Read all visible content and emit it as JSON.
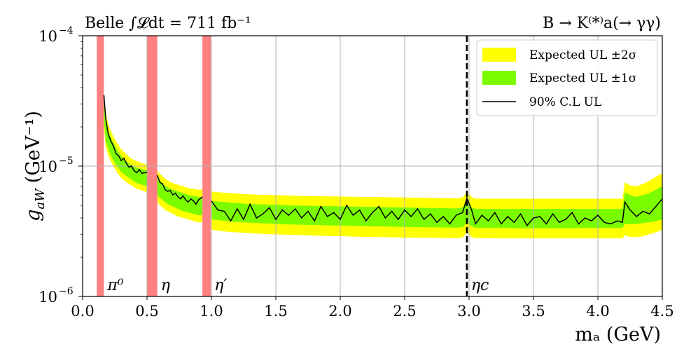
{
  "chart_data": {
    "type": "line",
    "header_left": "Belle ∫𝓛dt = 711 fb⁻¹",
    "header_right": "B → K⁽*⁾a(→ γγ)",
    "xlabel": "mₐ (GeV)",
    "ylabel": "g_aW (GeV⁻¹)",
    "ylabel_sym": "g",
    "ylabel_sub": "aW",
    "ylabel_unit": "(GeV⁻¹)",
    "xlim": [
      0.0,
      4.5
    ],
    "ylim": [
      1e-06,
      0.0001
    ],
    "yscale": "log",
    "grid": true,
    "legend_position": "top-right",
    "x_ticks": [
      "0.0",
      "0.5",
      "1.0",
      "1.5",
      "2.0",
      "2.5",
      "3.0",
      "3.5",
      "4.0",
      "4.5"
    ],
    "y_ticks": [
      {
        "base": "10",
        "exp": "−6"
      },
      {
        "base": "10",
        "exp": "−5"
      },
      {
        "base": "10",
        "exp": "−4"
      }
    ],
    "legend": [
      {
        "label": "Expected UL ±2σ",
        "color": "#ffff00",
        "kind": "band"
      },
      {
        "label": "Expected UL ±1σ",
        "color": "#7cfc00",
        "kind": "band"
      },
      {
        "label": "90% C.L UL",
        "color": "#000000",
        "kind": "line"
      }
    ],
    "veto_regions": [
      {
        "label": "π⁰",
        "x0": 0.11,
        "x1": 0.165
      },
      {
        "label": "η",
        "x0": 0.5,
        "x1": 0.58
      },
      {
        "label": "η′",
        "x0": 0.93,
        "x1": 0.995
      }
    ],
    "veto_color": "#ff8080",
    "eta_c": {
      "label": "ηc",
      "x": 2.983
    },
    "segments": [
      {
        "x": [
          0.165,
          0.18,
          0.2,
          0.22,
          0.24,
          0.26,
          0.28,
          0.3,
          0.32,
          0.34,
          0.36,
          0.38,
          0.4,
          0.42,
          0.44,
          0.46,
          0.48,
          0.5
        ],
        "obs": [
          3.5e-05,
          2.3e-05,
          1.75e-05,
          1.55e-05,
          1.42e-05,
          1.25e-05,
          1.2e-05,
          1.1e-05,
          1.15e-05,
          1.05e-05,
          9.8e-06,
          1e-05,
          9.2e-06,
          8.9e-06,
          9.4e-06,
          8.8e-06,
          8.9e-06,
          8.9e-06
        ],
        "lo1": [
          2.3e-05,
          1.55e-05,
          1.35e-05,
          1.2e-05,
          1.1e-05,
          1.02e-05,
          9.6e-06,
          9e-06,
          8.7e-06,
          8.4e-06,
          8.1e-06,
          7.9e-06,
          7.6e-06,
          7.4e-06,
          7.3e-06,
          7.2e-06,
          7.1e-06,
          7e-06
        ],
        "hi1": [
          3.1e-05,
          2.2e-05,
          1.85e-05,
          1.65e-05,
          1.5e-05,
          1.38e-05,
          1.28e-05,
          1.2e-05,
          1.14e-05,
          1.09e-05,
          1.05e-05,
          1.02e-05,
          9.9e-06,
          9.7e-06,
          9.6e-06,
          9.5e-06,
          9.4e-06,
          9.3e-06
        ],
        "lo2": [
          2e-05,
          1.4e-05,
          1.2e-05,
          1.08e-05,
          9.9e-06,
          9.2e-06,
          8.6e-06,
          8.1e-06,
          7.8e-06,
          7.5e-06,
          7.3e-06,
          7.1e-06,
          6.9e-06,
          6.7e-06,
          6.6e-06,
          6.5e-06,
          6.4e-06,
          6.3e-06
        ],
        "hi2": [
          3.5e-05,
          2.5e-05,
          2.1e-05,
          1.85e-05,
          1.68e-05,
          1.55e-05,
          1.44e-05,
          1.35e-05,
          1.29e-05,
          1.23e-05,
          1.18e-05,
          1.14e-05,
          1.11e-05,
          1.09e-05,
          1.07e-05,
          1.05e-05,
          1.04e-05,
          1.03e-05
        ]
      },
      {
        "x": [
          0.58,
          0.6,
          0.62,
          0.64,
          0.66,
          0.68,
          0.7,
          0.72,
          0.74,
          0.76,
          0.78,
          0.8,
          0.82,
          0.84,
          0.86,
          0.88,
          0.9,
          0.93
        ],
        "obs": [
          8.5e-06,
          7.5e-06,
          7.3e-06,
          6.6e-06,
          6.4e-06,
          6.5e-06,
          6e-06,
          6.2e-06,
          5.8e-06,
          5.6e-06,
          5.9e-06,
          5.5e-06,
          5.3e-06,
          5.6e-06,
          5.4e-06,
          5.1e-06,
          5.5e-06,
          5.8e-06
        ],
        "lo1": [
          6e-06,
          5.7e-06,
          5.5e-06,
          5.3e-06,
          5.1e-06,
          5e-06,
          4.9e-06,
          4.8e-06,
          4.7e-06,
          4.6e-06,
          4.5e-06,
          4.45e-06,
          4.4e-06,
          4.35e-06,
          4.3e-06,
          4.25e-06,
          4.2e-06,
          4.2e-06
        ],
        "hi1": [
          8.2e-06,
          7.7e-06,
          7.4e-06,
          7.1e-06,
          6.9e-06,
          6.7e-06,
          6.6e-06,
          6.5e-06,
          6.4e-06,
          6.3e-06,
          6.2e-06,
          6.1e-06,
          6e-06,
          5.95e-06,
          5.9e-06,
          5.85e-06,
          5.8e-06,
          5.8e-06
        ],
        "lo2": [
          5.3e-06,
          5e-06,
          4.8e-06,
          4.6e-06,
          4.5e-06,
          4.4e-06,
          4.3e-06,
          4.2e-06,
          4.1e-06,
          4.05e-06,
          4e-06,
          3.95e-06,
          3.9e-06,
          3.85e-06,
          3.8e-06,
          3.75e-06,
          3.7e-06,
          3.7e-06
        ],
        "hi2": [
          9.3e-06,
          8.7e-06,
          8.4e-06,
          8e-06,
          7.8e-06,
          7.6e-06,
          7.4e-06,
          7.3e-06,
          7.2e-06,
          7.1e-06,
          7e-06,
          6.9e-06,
          6.8e-06,
          6.75e-06,
          6.7e-06,
          6.65e-06,
          6.6e-06,
          6.6e-06
        ]
      },
      {
        "x": [
          1.0,
          1.05,
          1.1,
          1.15,
          1.2,
          1.25,
          1.3,
          1.35,
          1.4,
          1.45,
          1.5,
          1.55,
          1.6,
          1.65,
          1.7,
          1.75,
          1.8,
          1.85,
          1.9,
          1.95,
          2.0,
          2.05,
          2.1,
          2.15,
          2.2,
          2.25,
          2.3,
          2.35,
          2.4,
          2.45,
          2.5,
          2.55,
          2.6,
          2.65,
          2.7,
          2.75,
          2.8,
          2.85,
          2.9,
          2.95,
          2.983,
          3.02,
          3.05,
          3.1,
          3.15,
          3.2,
          3.25,
          3.3,
          3.35,
          3.4,
          3.45,
          3.5,
          3.55,
          3.6,
          3.65,
          3.7,
          3.75,
          3.8,
          3.85,
          3.9,
          3.95,
          4.0,
          4.05,
          4.1,
          4.15,
          4.19,
          4.21,
          4.25,
          4.3,
          4.35,
          4.4,
          4.45,
          4.5
        ],
        "obs": [
          5.4e-06,
          4.6e-06,
          4.5e-06,
          3.8e-06,
          4.7e-06,
          3.9e-06,
          5.1e-06,
          4e-06,
          4.3e-06,
          4.8e-06,
          3.9e-06,
          4.6e-06,
          4.2e-06,
          4.7e-06,
          4e-06,
          4.5e-06,
          3.8e-06,
          4.9e-06,
          4.1e-06,
          4.4e-06,
          3.9e-06,
          5e-06,
          4.2e-06,
          4.6e-06,
          3.8e-06,
          4.4e-06,
          4.9e-06,
          4e-06,
          4.5e-06,
          3.9e-06,
          4.6e-06,
          4.1e-06,
          4.7e-06,
          3.9e-06,
          4.3e-06,
          3.7e-06,
          4.1e-06,
          3.6e-06,
          4.2e-06,
          4.4e-06,
          5.7e-06,
          4.6e-06,
          3.6e-06,
          4.2e-06,
          3.8e-06,
          4.4e-06,
          3.6e-06,
          4.1e-06,
          3.7e-06,
          4.3e-06,
          3.5e-06,
          4e-06,
          4.1e-06,
          3.6e-06,
          4.3e-06,
          3.7e-06,
          3.9e-06,
          4.4e-06,
          3.6e-06,
          4e-06,
          3.8e-06,
          4.2e-06,
          3.7e-06,
          3.6e-06,
          3.8e-06,
          3.7e-06,
          5.3e-06,
          4.6e-06,
          4.1e-06,
          4.5e-06,
          4.3e-06,
          4.9e-06,
          5.6e-06
        ],
        "lo1": [
          3.9e-06,
          3.85e-06,
          3.8e-06,
          3.75e-06,
          3.72e-06,
          3.7e-06,
          3.68e-06,
          3.66e-06,
          3.64e-06,
          3.62e-06,
          3.6e-06,
          3.58e-06,
          3.57e-06,
          3.56e-06,
          3.55e-06,
          3.54e-06,
          3.53e-06,
          3.52e-06,
          3.51e-06,
          3.5e-06,
          3.5e-06,
          3.49e-06,
          3.48e-06,
          3.47e-06,
          3.46e-06,
          3.45e-06,
          3.45e-06,
          3.44e-06,
          3.43e-06,
          3.42e-06,
          3.42e-06,
          3.41e-06,
          3.4e-06,
          3.4e-06,
          3.39e-06,
          3.39e-06,
          3.38e-06,
          3.38e-06,
          3.37e-06,
          3.4e-06,
          3.7e-06,
          3.45e-06,
          3.36e-06,
          3.36e-06,
          3.35e-06,
          3.35e-06,
          3.35e-06,
          3.35e-06,
          3.34e-06,
          3.34e-06,
          3.34e-06,
          3.34e-06,
          3.34e-06,
          3.34e-06,
          3.34e-06,
          3.34e-06,
          3.34e-06,
          3.34e-06,
          3.35e-06,
          3.35e-06,
          3.35e-06,
          3.35e-06,
          3.35e-06,
          3.35e-06,
          3.35e-06,
          3.35e-06,
          3.6e-06,
          3.58e-06,
          3.6e-06,
          3.65e-06,
          3.7e-06,
          3.8e-06,
          3.9e-06
        ],
        "hi1": [
          5.4e-06,
          5.35e-06,
          5.3e-06,
          5.25e-06,
          5.2e-06,
          5.15e-06,
          5.12e-06,
          5.1e-06,
          5.08e-06,
          5.06e-06,
          5.04e-06,
          5.02e-06,
          5e-06,
          4.98e-06,
          4.97e-06,
          4.96e-06,
          4.95e-06,
          4.94e-06,
          4.93e-06,
          4.92e-06,
          4.91e-06,
          4.9e-06,
          4.89e-06,
          4.88e-06,
          4.87e-06,
          4.86e-06,
          4.85e-06,
          4.84e-06,
          4.83e-06,
          4.82e-06,
          4.81e-06,
          4.8e-06,
          4.79e-06,
          4.78e-06,
          4.77e-06,
          4.76e-06,
          4.75e-06,
          4.74e-06,
          4.73e-06,
          4.8e-06,
          5.3e-06,
          4.85e-06,
          4.7e-06,
          4.7e-06,
          4.7e-06,
          4.7e-06,
          4.7e-06,
          4.7e-06,
          4.7e-06,
          4.7e-06,
          4.7e-06,
          4.7e-06,
          4.7e-06,
          4.7e-06,
          4.7e-06,
          4.7e-06,
          4.7e-06,
          4.7e-06,
          4.7e-06,
          4.7e-06,
          4.7e-06,
          4.7e-06,
          4.7e-06,
          4.7e-06,
          4.7e-06,
          4.7e-06,
          6.3e-06,
          6e-06,
          5.8e-06,
          6e-06,
          6.2e-06,
          6.6e-06,
          7e-06
        ],
        "lo2": [
          3.25e-06,
          3.2e-06,
          3.15e-06,
          3.12e-06,
          3.1e-06,
          3.08e-06,
          3.06e-06,
          3.04e-06,
          3.02e-06,
          3e-06,
          2.99e-06,
          2.98e-06,
          2.97e-06,
          2.96e-06,
          2.95e-06,
          2.94e-06,
          2.93e-06,
          2.92e-06,
          2.91e-06,
          2.9e-06,
          2.9e-06,
          2.89e-06,
          2.88e-06,
          2.87e-06,
          2.86e-06,
          2.86e-06,
          2.85e-06,
          2.85e-06,
          2.84e-06,
          2.84e-06,
          2.83e-06,
          2.83e-06,
          2.82e-06,
          2.82e-06,
          2.82e-06,
          2.81e-06,
          2.81e-06,
          2.81e-06,
          2.8e-06,
          2.83e-06,
          3.1e-06,
          2.86e-06,
          2.8e-06,
          2.8e-06,
          2.8e-06,
          2.79e-06,
          2.79e-06,
          2.79e-06,
          2.79e-06,
          2.79e-06,
          2.79e-06,
          2.79e-06,
          2.79e-06,
          2.79e-06,
          2.79e-06,
          2.79e-06,
          2.79e-06,
          2.79e-06,
          2.79e-06,
          2.79e-06,
          2.79e-06,
          2.79e-06,
          2.79e-06,
          2.79e-06,
          2.79e-06,
          2.79e-06,
          2.95e-06,
          2.85e-06,
          2.85e-06,
          2.9e-06,
          3e-06,
          3.1e-06,
          3.25e-06
        ],
        "hi2": [
          6.4e-06,
          6.3e-06,
          6.25e-06,
          6.2e-06,
          6.15e-06,
          6.1e-06,
          6.07e-06,
          6.04e-06,
          6.02e-06,
          6e-06,
          5.98e-06,
          5.96e-06,
          5.94e-06,
          5.92e-06,
          5.9e-06,
          5.89e-06,
          5.88e-06,
          5.87e-06,
          5.86e-06,
          5.85e-06,
          5.84e-06,
          5.83e-06,
          5.82e-06,
          5.81e-06,
          5.8e-06,
          5.79e-06,
          5.78e-06,
          5.77e-06,
          5.76e-06,
          5.75e-06,
          5.74e-06,
          5.73e-06,
          5.72e-06,
          5.71e-06,
          5.7e-06,
          5.69e-06,
          5.68e-06,
          5.67e-06,
          5.66e-06,
          5.75e-06,
          6.3e-06,
          5.8e-06,
          5.62e-06,
          5.62e-06,
          5.62e-06,
          5.62e-06,
          5.62e-06,
          5.62e-06,
          5.62e-06,
          5.62e-06,
          5.62e-06,
          5.62e-06,
          5.62e-06,
          5.62e-06,
          5.62e-06,
          5.62e-06,
          5.62e-06,
          5.62e-06,
          5.62e-06,
          5.62e-06,
          5.62e-06,
          5.62e-06,
          5.62e-06,
          5.62e-06,
          5.62e-06,
          5.62e-06,
          7.5e-06,
          7.1e-06,
          7e-06,
          7.3e-06,
          7.7e-06,
          8.3e-06,
          8.8e-06
        ]
      }
    ]
  }
}
